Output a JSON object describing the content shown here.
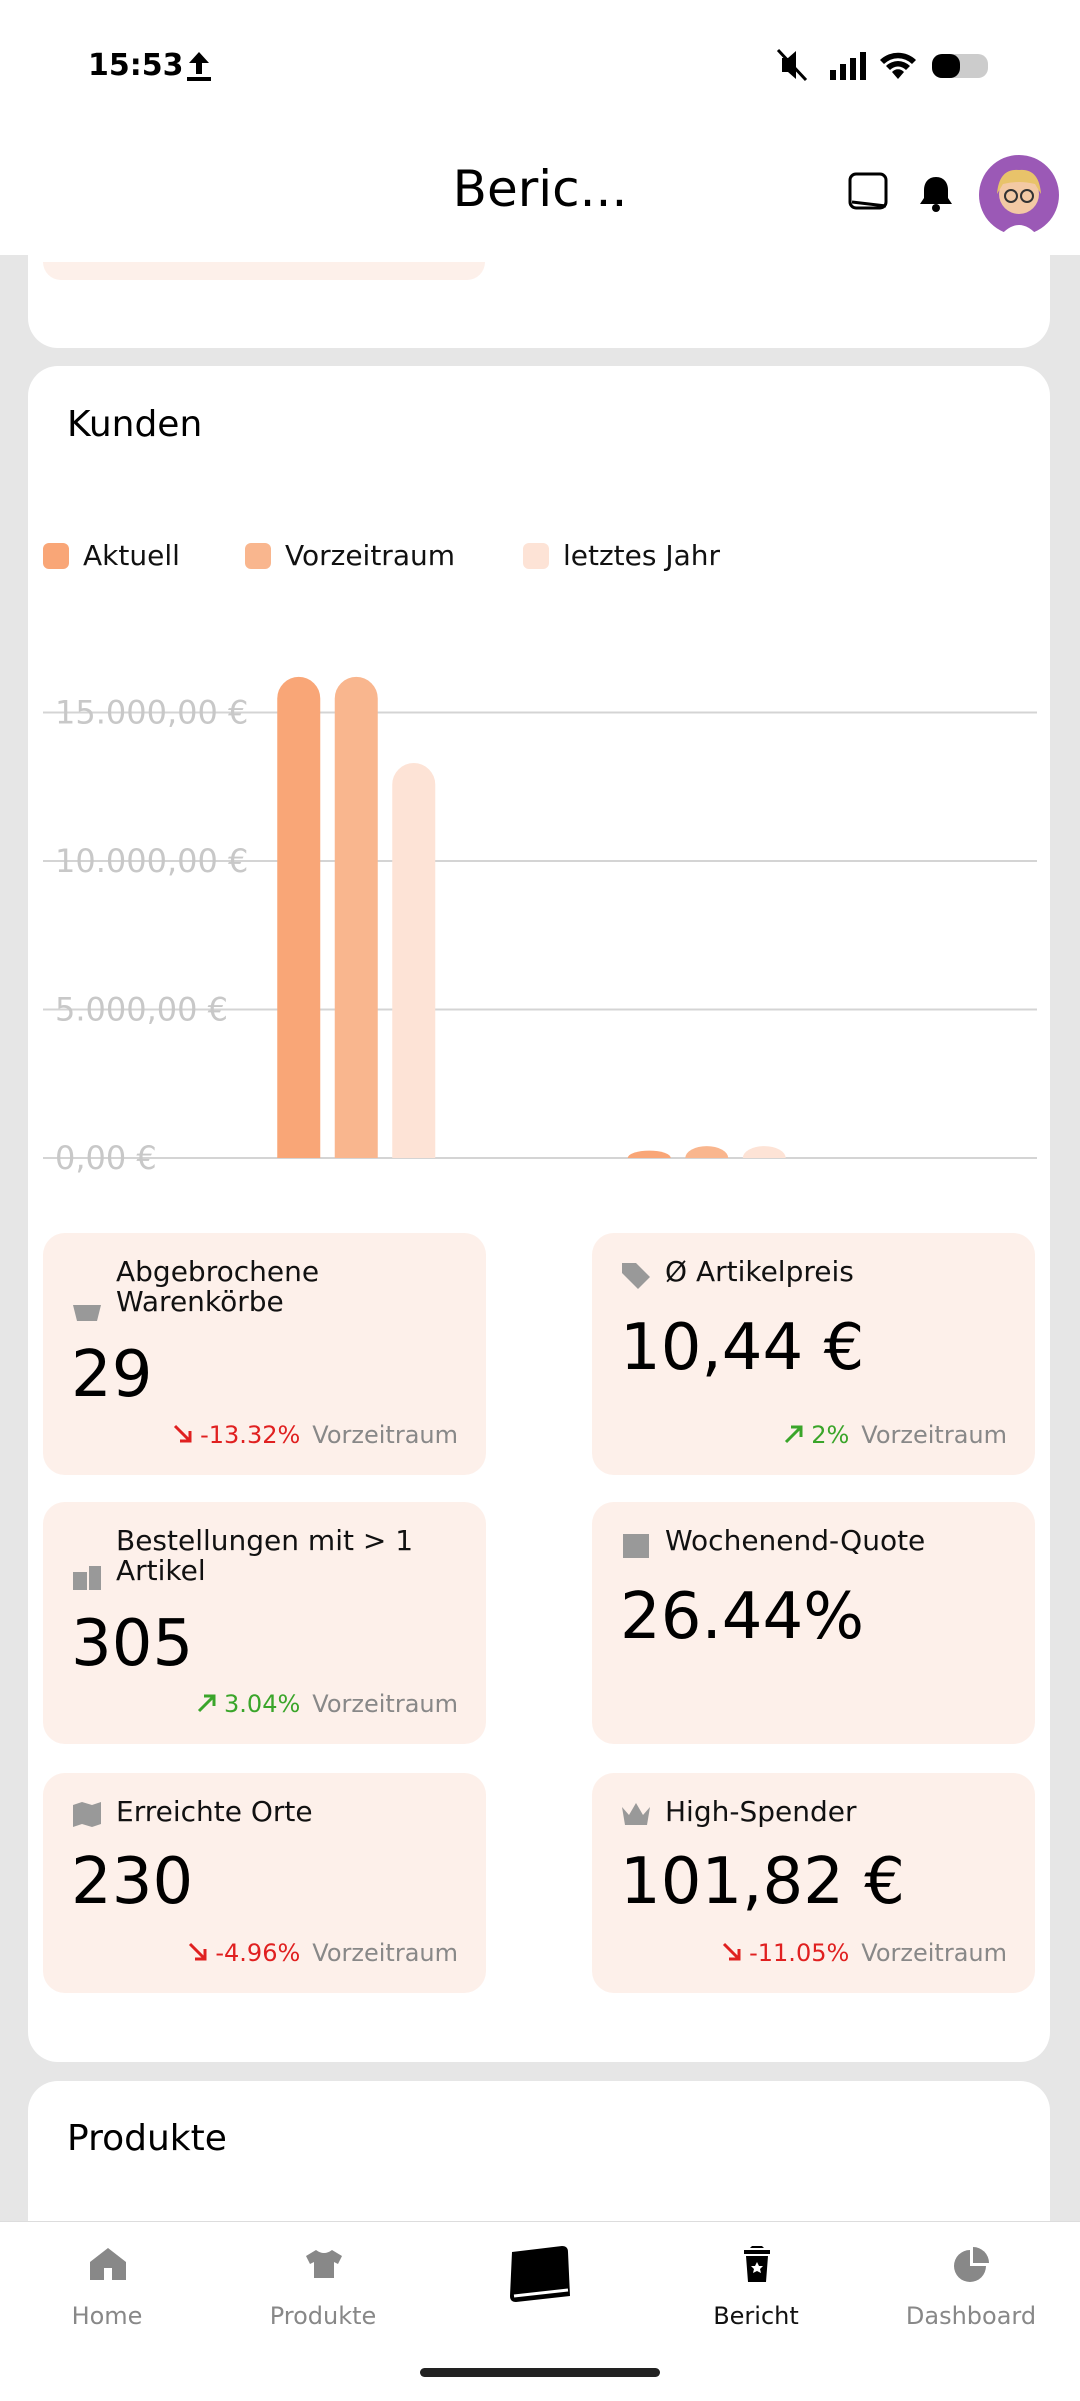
{
  "status_bar": {
    "time": "15:53"
  },
  "header": {
    "title": "Beric..."
  },
  "card": {
    "title": "Kunden",
    "chart_data": {
      "type": "bar",
      "categories": [
        null,
        null
      ],
      "series": [
        {
          "name": "Aktuell",
          "color": "#f9a677",
          "values": [
            16200,
            250
          ]
        },
        {
          "name": "Vorzeitraum",
          "color": "#f9b68e",
          "values": [
            16200,
            400
          ]
        },
        {
          "name": "letztes Jahr",
          "color": "#fde3d6",
          "values": [
            13300,
            400
          ]
        }
      ],
      "ylim": [
        0,
        16500
      ],
      "yticks": [
        {
          "value": 0,
          "label": "0,00 €"
        },
        {
          "value": 5000,
          "label": "5.000,00 €"
        },
        {
          "value": 10000,
          "label": "10.000,00 €"
        },
        {
          "value": 15000,
          "label": "15.000,00 €"
        }
      ],
      "grid": true,
      "legend": "top"
    },
    "stats": [
      {
        "label": "Abgebrochene Warenkörbe",
        "value": "29",
        "change": "-13.32%",
        "change_label": "Vorzeitraum"
      },
      {
        "label": "Ø Artikelpreis",
        "value": "10,44 €",
        "change": "2%",
        "change_label": "Vorzeitraum"
      },
      {
        "label": "Bestellungen mit > 1 Artikel",
        "value": "305",
        "change": "3.04%",
        "change_label": "Vorzeitraum"
      },
      {
        "label": "Wochenend-Quote",
        "value": "26.44%"
      },
      {
        "label": "Erreichte Orte",
        "value": "230",
        "change": "-4.96%",
        "change_label": "Vorzeitraum"
      },
      {
        "label": "High-Spender",
        "value": "101,82 €",
        "change": "-11.05%",
        "change_label": "Vorzeitraum"
      }
    ]
  },
  "next_card": {
    "title": "Produkte"
  },
  "nav": [
    "Home",
    "Produkte",
    "Bericht",
    "Dashboard"
  ]
}
